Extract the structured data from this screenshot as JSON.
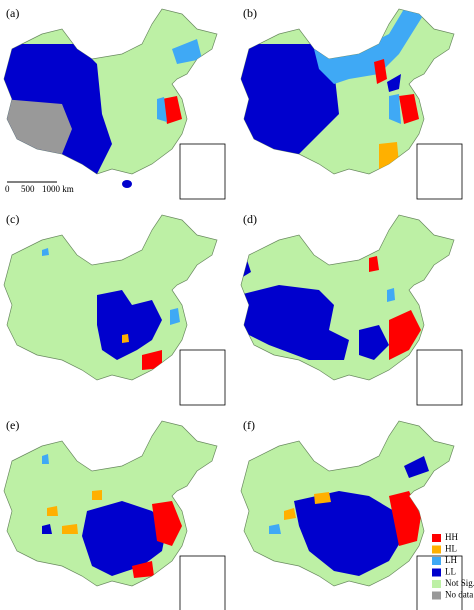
{
  "panels": [
    {
      "label": "(a)"
    },
    {
      "label": "(b)"
    },
    {
      "label": "(c)"
    },
    {
      "label": "(d)"
    },
    {
      "label": "(e)"
    },
    {
      "label": "(f)"
    }
  ],
  "scale_bar": {
    "ticks": [
      "0",
      "500",
      "1000 km"
    ]
  },
  "legend": {
    "items": [
      {
        "label": "HH",
        "color": "#ff0000"
      },
      {
        "label": "HL",
        "color": "#ffb000"
      },
      {
        "label": "LH",
        "color": "#3fa9f5"
      },
      {
        "label": "LL",
        "color": "#0000cd"
      },
      {
        "label": "Not Sig.",
        "color": "#bdf0a5"
      },
      {
        "label": "No data",
        "color": "#999999"
      }
    ]
  }
}
